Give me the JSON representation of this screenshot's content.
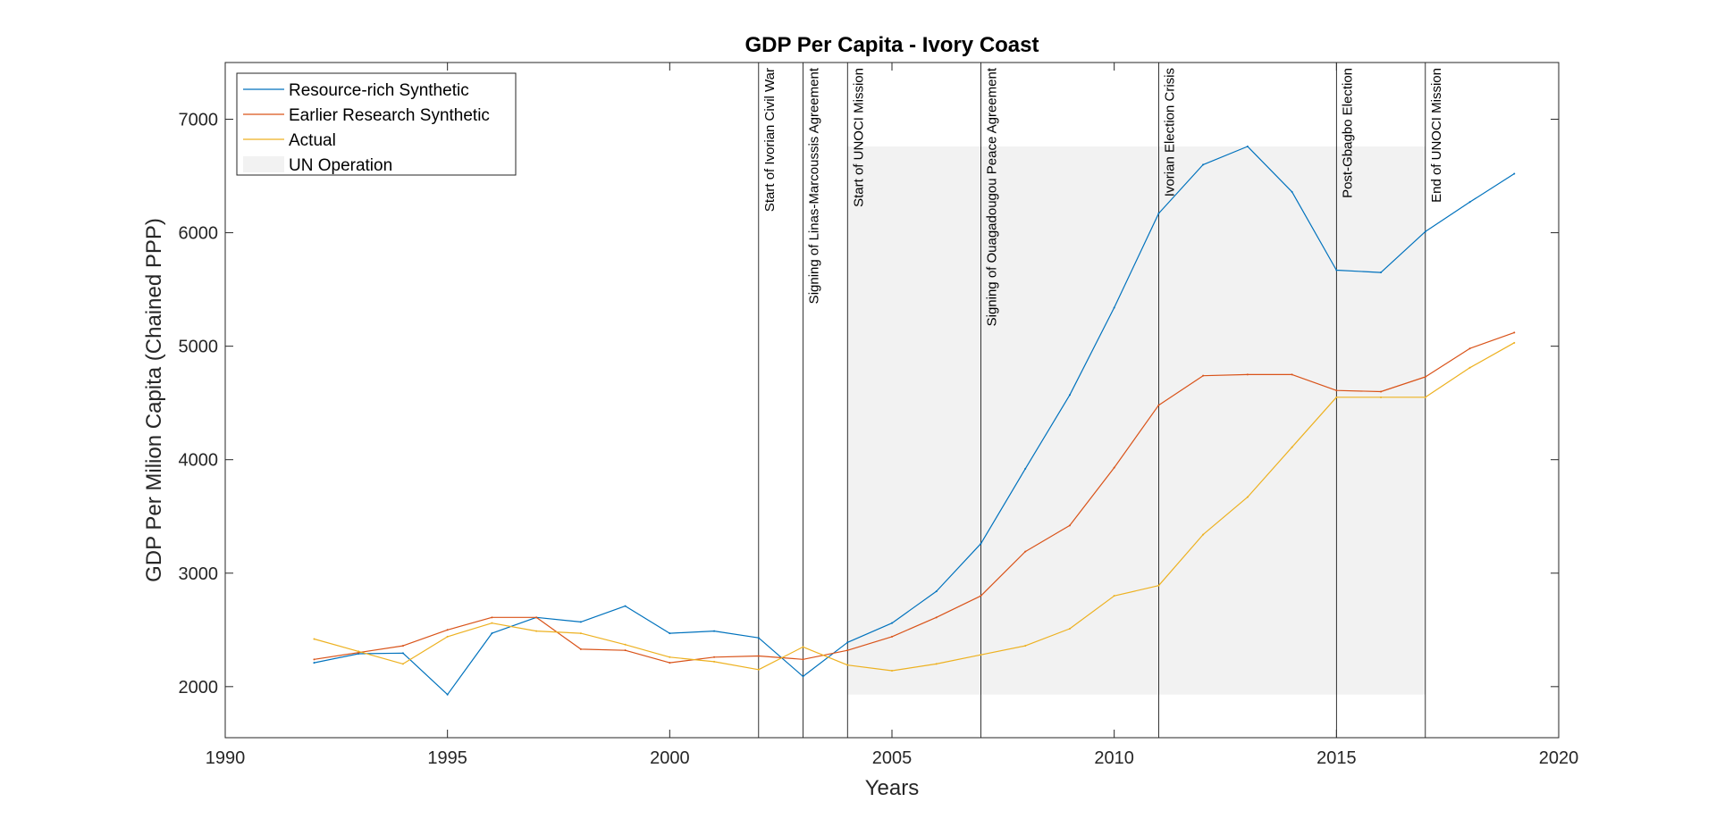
{
  "chart_data": {
    "type": "line",
    "title": "GDP Per Capita - Ivory Coast",
    "xlabel": "Years",
    "ylabel": "GDP Per Milion Capita (Chained PPP)",
    "xlim": [
      1990,
      2020
    ],
    "ylim": [
      1550,
      7500
    ],
    "xticks": [
      1990,
      1995,
      2000,
      2005,
      2010,
      2015,
      2020
    ],
    "yticks": [
      2000,
      3000,
      4000,
      5000,
      6000,
      7000
    ],
    "grid": false,
    "legend_position": "top-left",
    "x": [
      1992,
      1993,
      1994,
      1995,
      1996,
      1997,
      1998,
      1999,
      2000,
      2001,
      2002,
      2003,
      2004,
      2005,
      2006,
      2007,
      2008,
      2009,
      2010,
      2011,
      2012,
      2013,
      2014,
      2015,
      2016,
      2017,
      2018,
      2019
    ],
    "series": [
      {
        "name": "Resource-rich Synthetic",
        "color": "#0072BD",
        "values": [
          2210,
          2290,
          2295,
          1930,
          2470,
          2610,
          2570,
          2710,
          2470,
          2490,
          2430,
          2090,
          2390,
          2560,
          2840,
          3260,
          3920,
          4570,
          5340,
          6170,
          6600,
          6760,
          6360,
          5670,
          5650,
          6010,
          6270,
          6520
        ]
      },
      {
        "name": "Earlier Research Synthetic",
        "color": "#D95319",
        "values": [
          2240,
          2300,
          2360,
          2500,
          2610,
          2610,
          2330,
          2320,
          2210,
          2260,
          2270,
          2240,
          2320,
          2440,
          2610,
          2800,
          3190,
          3420,
          3930,
          4480,
          4740,
          4750,
          4750,
          4610,
          4600,
          4730,
          4980,
          5120
        ]
      },
      {
        "name": "Actual",
        "color": "#EDB120",
        "values": [
          2420,
          2310,
          2200,
          2440,
          2560,
          2490,
          2470,
          2370,
          2260,
          2220,
          2150,
          2350,
          2190,
          2140,
          2200,
          2280,
          2360,
          2510,
          2800,
          2890,
          3340,
          3670,
          4110,
          4550,
          4550,
          4550,
          4810,
          5030
        ]
      }
    ],
    "shaded_region": {
      "name": "UN Operation",
      "x_start": 2004,
      "x_end": 2017,
      "y_start": 1930,
      "y_end": 6760,
      "color": "#F2F2F2"
    },
    "events": [
      {
        "x": 2002,
        "label": "Start of Ivorian Civil War"
      },
      {
        "x": 2003,
        "label": "Signing of Linas-Marcoussis Agreement"
      },
      {
        "x": 2004,
        "label": "Start of UNOCI  Mission"
      },
      {
        "x": 2007,
        "label": "Signing of Ouagadougou Peace Agreement"
      },
      {
        "x": 2011,
        "label": "Ivorian Election Crisis"
      },
      {
        "x": 2015,
        "label": "Post-Gbagbo Election"
      },
      {
        "x": 2017,
        "label": "End of UNOCI  Mission"
      }
    ]
  }
}
